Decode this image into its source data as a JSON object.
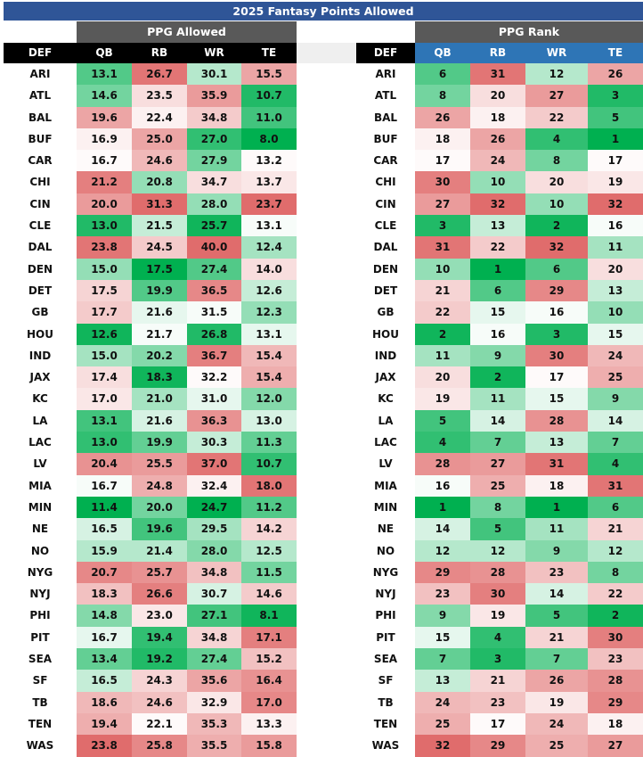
{
  "title": "2025 Fantasy Points Allowed",
  "ppg_table": {
    "group_label": "PPG Allowed",
    "headers": [
      "DEF",
      "QB",
      "RB",
      "WR",
      "TE"
    ],
    "rows": [
      [
        "ARI",
        "13.1",
        "26.7",
        "30.1",
        "15.5"
      ],
      [
        "ATL",
        "14.6",
        "23.5",
        "35.9",
        "10.7"
      ],
      [
        "BAL",
        "19.6",
        "22.4",
        "34.8",
        "11.0"
      ],
      [
        "BUF",
        "16.9",
        "25.0",
        "27.0",
        "8.0"
      ],
      [
        "CAR",
        "16.7",
        "24.6",
        "27.9",
        "13.2"
      ],
      [
        "CHI",
        "21.2",
        "20.8",
        "34.7",
        "13.7"
      ],
      [
        "CIN",
        "20.0",
        "31.3",
        "28.0",
        "23.7"
      ],
      [
        "CLE",
        "13.0",
        "21.5",
        "25.7",
        "13.1"
      ],
      [
        "DAL",
        "23.8",
        "24.5",
        "40.0",
        "12.4"
      ],
      [
        "DEN",
        "15.0",
        "17.5",
        "27.4",
        "14.0"
      ],
      [
        "DET",
        "17.5",
        "19.9",
        "36.5",
        "12.6"
      ],
      [
        "GB",
        "17.7",
        "21.6",
        "31.5",
        "12.3"
      ],
      [
        "HOU",
        "12.6",
        "21.7",
        "26.8",
        "13.1"
      ],
      [
        "IND",
        "15.0",
        "20.2",
        "36.7",
        "15.4"
      ],
      [
        "JAX",
        "17.4",
        "18.3",
        "32.2",
        "15.4"
      ],
      [
        "KC",
        "17.0",
        "21.0",
        "31.0",
        "12.0"
      ],
      [
        "LA",
        "13.1",
        "21.6",
        "36.3",
        "13.0"
      ],
      [
        "LAC",
        "13.0",
        "19.9",
        "30.3",
        "11.3"
      ],
      [
        "LV",
        "20.4",
        "25.5",
        "37.0",
        "10.7"
      ],
      [
        "MIA",
        "16.7",
        "24.8",
        "32.4",
        "18.0"
      ],
      [
        "MIN",
        "11.4",
        "20.0",
        "24.7",
        "11.2"
      ],
      [
        "NE",
        "16.5",
        "19.6",
        "29.5",
        "14.2"
      ],
      [
        "NO",
        "15.9",
        "21.4",
        "28.0",
        "12.5"
      ],
      [
        "NYG",
        "20.7",
        "25.7",
        "34.8",
        "11.5"
      ],
      [
        "NYJ",
        "18.3",
        "26.6",
        "30.7",
        "14.6"
      ],
      [
        "PHI",
        "14.8",
        "23.0",
        "27.1",
        "8.1"
      ],
      [
        "PIT",
        "16.7",
        "19.4",
        "34.8",
        "17.1"
      ],
      [
        "SEA",
        "13.4",
        "19.2",
        "27.4",
        "15.2"
      ],
      [
        "SF",
        "16.5",
        "24.3",
        "35.6",
        "16.4"
      ],
      [
        "TB",
        "18.6",
        "24.6",
        "32.9",
        "17.0"
      ],
      [
        "TEN",
        "19.4",
        "22.1",
        "35.3",
        "13.3"
      ],
      [
        "WAS",
        "23.8",
        "25.8",
        "35.5",
        "15.8"
      ]
    ]
  },
  "rank_table": {
    "group_label": "PPG Rank",
    "headers": [
      "DEF",
      "QB",
      "RB",
      "WR",
      "TE"
    ],
    "rows": [
      [
        "ARI",
        "6",
        "31",
        "12",
        "26"
      ],
      [
        "ATL",
        "8",
        "20",
        "27",
        "3"
      ],
      [
        "BAL",
        "26",
        "18",
        "22",
        "5"
      ],
      [
        "BUF",
        "18",
        "26",
        "4",
        "1"
      ],
      [
        "CAR",
        "17",
        "24",
        "8",
        "17"
      ],
      [
        "CHI",
        "30",
        "10",
        "20",
        "19"
      ],
      [
        "CIN",
        "27",
        "32",
        "10",
        "32"
      ],
      [
        "CLE",
        "3",
        "13",
        "2",
        "16"
      ],
      [
        "DAL",
        "31",
        "22",
        "32",
        "11"
      ],
      [
        "DEN",
        "10",
        "1",
        "6",
        "20"
      ],
      [
        "DET",
        "21",
        "6",
        "29",
        "13"
      ],
      [
        "GB",
        "22",
        "15",
        "16",
        "10"
      ],
      [
        "HOU",
        "2",
        "16",
        "3",
        "15"
      ],
      [
        "IND",
        "11",
        "9",
        "30",
        "24"
      ],
      [
        "JAX",
        "20",
        "2",
        "17",
        "25"
      ],
      [
        "KC",
        "19",
        "11",
        "15",
        "9"
      ],
      [
        "LA",
        "5",
        "14",
        "28",
        "14"
      ],
      [
        "LAC",
        "4",
        "7",
        "13",
        "7"
      ],
      [
        "LV",
        "28",
        "27",
        "31",
        "4"
      ],
      [
        "MIA",
        "16",
        "25",
        "18",
        "31"
      ],
      [
        "MIN",
        "1",
        "8",
        "1",
        "6"
      ],
      [
        "NE",
        "14",
        "5",
        "11",
        "21"
      ],
      [
        "NO",
        "12",
        "12",
        "9",
        "12"
      ],
      [
        "NYG",
        "29",
        "28",
        "23",
        "8"
      ],
      [
        "NYJ",
        "23",
        "30",
        "14",
        "22"
      ],
      [
        "PHI",
        "9",
        "19",
        "5",
        "2"
      ],
      [
        "PIT",
        "15",
        "4",
        "21",
        "30"
      ],
      [
        "SEA",
        "7",
        "3",
        "7",
        "23"
      ],
      [
        "SF",
        "13",
        "21",
        "26",
        "28"
      ],
      [
        "TB",
        "24",
        "23",
        "19",
        "29"
      ],
      [
        "TEN",
        "25",
        "17",
        "24",
        "18"
      ],
      [
        "WAS",
        "32",
        "29",
        "25",
        "27"
      ]
    ]
  },
  "colors": {
    "title_bg": "#2f5597",
    "group_bg": "#595959",
    "header_black": "#000000",
    "rank_header_bg": "#2e75b6",
    "best": "#00b050",
    "mid": "#ffffff",
    "worst": "#e06c6c"
  }
}
